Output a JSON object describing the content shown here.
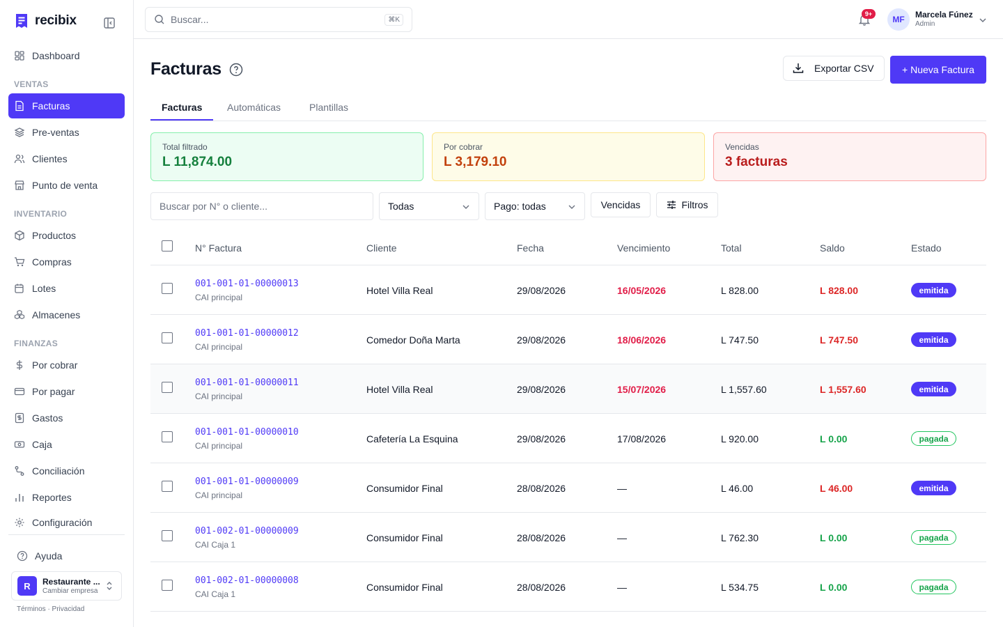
{
  "app": {
    "name": "recibix"
  },
  "sidebar": {
    "dashboard": "Dashboard",
    "sections": {
      "ventas": "VENTAS",
      "inventario": "INVENTARIO",
      "finanzas": "FINANZAS"
    },
    "items": {
      "facturas": "Facturas",
      "preventas": "Pre-ventas",
      "clientes": "Clientes",
      "pos": "Punto de venta",
      "productos": "Productos",
      "compras": "Compras",
      "lotes": "Lotes",
      "almacenes": "Almacenes",
      "por_cobrar": "Por cobrar",
      "por_pagar": "Por pagar",
      "gastos": "Gastos",
      "caja": "Caja",
      "conciliacion": "Conciliación",
      "reportes": "Reportes",
      "configuracion": "Configuración"
    },
    "help": "Ayuda",
    "company": {
      "initial": "R",
      "name": "Restaurante ...",
      "switch": "Cambiar empresa"
    },
    "footer": "Términos · Privacidad"
  },
  "topbar": {
    "search_placeholder": "Buscar...",
    "shortcut": "⌘K",
    "notifications": "9+",
    "user": {
      "initials": "MF",
      "name": "Marcela Fúnez",
      "role": "Admin"
    }
  },
  "page": {
    "title": "Facturas",
    "export_label": "Exportar CSV",
    "new_label": "+ Nueva Factura",
    "tabs": [
      "Facturas",
      "Automáticas",
      "Plantillas"
    ]
  },
  "stats": {
    "total": {
      "label": "Total filtrado",
      "value": "L 11,874.00"
    },
    "receivable": {
      "label": "Por cobrar",
      "value": "L 3,179.10"
    },
    "overdue": {
      "label": "Vencidas",
      "value": "3 facturas"
    }
  },
  "filters": {
    "search_placeholder": "Buscar por N° o cliente...",
    "type": "Todas",
    "payment": "Pago: todas",
    "overdue": "Vencidas",
    "more": "Filtros"
  },
  "table": {
    "columns": [
      "N° Factura",
      "Cliente",
      "Fecha",
      "Vencimiento",
      "Total",
      "Saldo",
      "Estado"
    ],
    "rows": [
      {
        "number": "001-001-01-00000013",
        "cai": "CAI principal",
        "client": "Hotel Villa Real",
        "date": "29/08/2026",
        "due": "16/05/2026",
        "total": "L 828.00",
        "balance": "L 828.00",
        "status": "emitida"
      },
      {
        "number": "001-001-01-00000012",
        "cai": "CAI principal",
        "client": "Comedor Doña Marta",
        "date": "29/08/2026",
        "due": "18/06/2026",
        "total": "L 747.50",
        "balance": "L 747.50",
        "status": "emitida"
      },
      {
        "number": "001-001-01-00000011",
        "cai": "CAI principal",
        "client": "Hotel Villa Real",
        "date": "29/08/2026",
        "due": "15/07/2026",
        "total": "L 1,557.60",
        "balance": "L 1,557.60",
        "status": "emitida"
      },
      {
        "number": "001-001-01-00000010",
        "cai": "CAI principal",
        "client": "Cafetería La Esquina",
        "date": "29/08/2026",
        "due": "17/08/2026",
        "total": "L 920.00",
        "balance": "L 0.00",
        "status": "pagada"
      },
      {
        "number": "001-001-01-00000009",
        "cai": "CAI principal",
        "client": "Consumidor Final",
        "date": "28/08/2026",
        "due": "—",
        "total": "L 46.00",
        "balance": "L 46.00",
        "status": "emitida"
      },
      {
        "number": "001-002-01-00000009",
        "cai": "CAI Caja 1",
        "client": "Consumidor Final",
        "date": "28/08/2026",
        "due": "—",
        "total": "L 762.30",
        "balance": "L 0.00",
        "status": "pagada"
      },
      {
        "number": "001-002-01-00000008",
        "cai": "CAI Caja 1",
        "client": "Consumidor Final",
        "date": "28/08/2026",
        "due": "—",
        "total": "L 534.75",
        "balance": "L 0.00",
        "status": "pagada"
      }
    ]
  },
  "colors": {
    "accent": "#4f39f6",
    "danger": "#dc2626",
    "success": "#16a34a"
  }
}
